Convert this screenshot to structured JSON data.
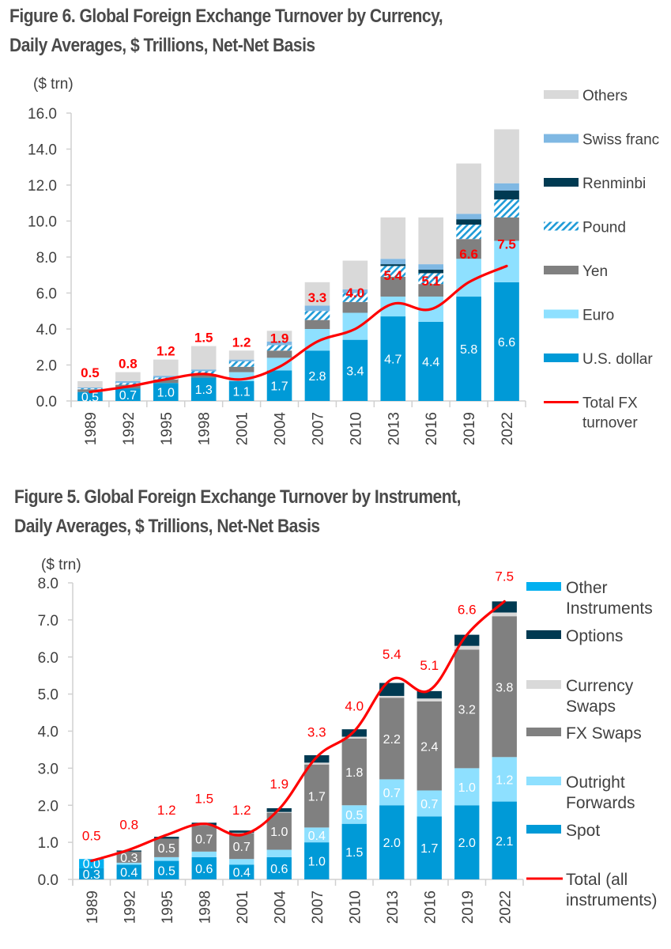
{
  "figures": {
    "figure6_title_line1": "Figure 6. Global Foreign Exchange Turnover by Currency,",
    "figure6_title_line2": "Daily Averages, $ Trillions, Net-Net Basis",
    "figure5_title_line1": "Figure 5. Global Foreign Exchange Turnover by Instrument,",
    "figure5_title_line2": "Daily Averages, $ Trillions, Net-Net Basis"
  },
  "chart_data": [
    {
      "type": "bar",
      "stacked": true,
      "title": "Figure 6. Global Foreign Exchange Turnover by Currency, Daily Averages, $ Trillions, Net-Net Basis",
      "ylabel": "($ trn)",
      "xlabel": "",
      "ylim": [
        0,
        16
      ],
      "yticks": [
        "0.0",
        "2.0",
        "4.0",
        "6.0",
        "8.0",
        "10.0",
        "12.0",
        "14.0",
        "16.0"
      ],
      "ytick_values": [
        0,
        2,
        4,
        6,
        8,
        10,
        12,
        14,
        16
      ],
      "grid": false,
      "legend_position": "right",
      "categories": [
        "1989",
        "1992",
        "1995",
        "1998",
        "2001",
        "2004",
        "2007",
        "2010",
        "2013",
        "2016",
        "2019",
        "2022"
      ],
      "series": [
        {
          "name": "U.S. dollar",
          "color": "#009ad7",
          "values": [
            0.5,
            0.7,
            1.0,
            1.3,
            1.1,
            1.7,
            2.8,
            3.4,
            4.7,
            4.4,
            5.8,
            6.6
          ],
          "labels": [
            "0.5",
            "0.7",
            "1.0",
            "1.3",
            "1.1",
            "1.7",
            "2.8",
            "3.4",
            "4.7",
            "4.4",
            "5.8",
            "6.6"
          ]
        },
        {
          "name": "Euro",
          "color": "#8ee0ff",
          "values": [
            0.0,
            0.0,
            0.0,
            0.0,
            0.5,
            0.7,
            1.2,
            1.5,
            1.1,
            1.4,
            2.1,
            2.3
          ]
        },
        {
          "name": "Yen",
          "color": "#808080",
          "values": [
            0.15,
            0.2,
            0.2,
            0.2,
            0.3,
            0.4,
            0.5,
            0.6,
            1.1,
            0.7,
            1.1,
            1.3
          ]
        },
        {
          "name": "Pound",
          "color": "#1e9bd7",
          "pattern": "hatch",
          "values": [
            0.05,
            0.1,
            0.1,
            0.15,
            0.3,
            0.3,
            0.5,
            0.5,
            0.6,
            0.6,
            0.8,
            1.0
          ]
        },
        {
          "name": "Renminbi",
          "color": "#003a52",
          "values": [
            0.0,
            0.0,
            0.0,
            0.0,
            0.0,
            0.0,
            0.0,
            0.0,
            0.1,
            0.2,
            0.3,
            0.5
          ]
        },
        {
          "name": "Swiss franc",
          "color": "#7fb8e3",
          "values": [
            0.05,
            0.1,
            0.1,
            0.1,
            0.1,
            0.2,
            0.3,
            0.2,
            0.3,
            0.3,
            0.3,
            0.4
          ]
        },
        {
          "name": "Others",
          "color": "#d9d9d9",
          "values": [
            0.35,
            0.5,
            0.9,
            1.3,
            0.5,
            0.6,
            1.3,
            1.6,
            2.3,
            2.6,
            2.8,
            3.0
          ]
        }
      ],
      "line": {
        "name": "Total FX turnover",
        "color": "#ff0000",
        "values": [
          0.5,
          0.8,
          1.2,
          1.5,
          1.2,
          1.9,
          3.3,
          4.0,
          5.4,
          5.1,
          6.6,
          7.5
        ],
        "labels": [
          "0.5",
          "0.8",
          "1.2",
          "1.5",
          "1.2",
          "1.9",
          "3.3",
          "4.0",
          "5.4",
          "5.1",
          "6.6",
          "7.5"
        ]
      },
      "legend": [
        "Others",
        "Swiss franc",
        "Renminbi",
        "Pound",
        "Yen",
        "Euro",
        "U.S. dollar",
        "Total FX turnover"
      ],
      "legend_line_label": [
        "Total FX",
        "turnover"
      ]
    },
    {
      "type": "bar",
      "stacked": true,
      "title": "Figure 5. Global Foreign Exchange Turnover by Instrument, Daily Averages, $ Trillions, Net-Net Basis",
      "ylabel": "($ trn)",
      "xlabel": "",
      "ylim": [
        0,
        8
      ],
      "yticks": [
        "0.0",
        "1.0",
        "2.0",
        "3.0",
        "4.0",
        "5.0",
        "6.0",
        "7.0",
        "8.0"
      ],
      "ytick_values": [
        0,
        1,
        2,
        3,
        4,
        5,
        6,
        7,
        8
      ],
      "grid": false,
      "legend_position": "right",
      "categories": [
        "1989",
        "1992",
        "1995",
        "1998",
        "2001",
        "2004",
        "2007",
        "2010",
        "2013",
        "2016",
        "2019",
        "2022"
      ],
      "series": [
        {
          "name": "Spot",
          "color": "#009ad7",
          "values": [
            0.3,
            0.4,
            0.5,
            0.6,
            0.4,
            0.6,
            1.0,
            1.5,
            2.0,
            1.7,
            2.0,
            2.1
          ],
          "labels": [
            "0.3",
            "0.4",
            "0.5",
            "0.6",
            "0.4",
            "0.6",
            "1.0",
            "1.5",
            "2.0",
            "1.7",
            "2.0",
            "2.1"
          ]
        },
        {
          "name": "Outright Forwards",
          "color": "#8ee0ff",
          "values": [
            0.0,
            0.05,
            0.1,
            0.15,
            0.15,
            0.2,
            0.4,
            0.5,
            0.7,
            0.7,
            1.0,
            1.2
          ],
          "labels": [
            "",
            "",
            "",
            "",
            "",
            "",
            "0.4",
            "0.5",
            "0.7",
            "0.7",
            "1.0",
            "1.2"
          ]
        },
        {
          "name": "FX Swaps",
          "color": "#808080",
          "values": [
            0.0,
            0.3,
            0.5,
            0.7,
            0.7,
            1.0,
            1.7,
            1.8,
            2.2,
            2.4,
            3.2,
            3.8
          ],
          "labels": [
            "0.0",
            "0.3",
            "0.5",
            "0.7",
            "0.7",
            "1.0",
            "1.7",
            "1.8",
            "2.2",
            "2.4",
            "3.2",
            "3.8"
          ]
        },
        {
          "name": "Currency Swaps",
          "color": "#d9d9d9",
          "values": [
            0.0,
            0.0,
            0.0,
            0.01,
            0.01,
            0.02,
            0.05,
            0.05,
            0.05,
            0.08,
            0.1,
            0.1
          ]
        },
        {
          "name": "Options",
          "color": "#003a52",
          "values": [
            0.0,
            0.03,
            0.05,
            0.07,
            0.06,
            0.1,
            0.2,
            0.2,
            0.35,
            0.2,
            0.3,
            0.3
          ]
        },
        {
          "name": "Other Instruments",
          "color": "#00b0f0",
          "values": [
            0.25,
            0.0,
            0.0,
            0.0,
            0.0,
            0.0,
            0.0,
            0.0,
            0.0,
            0.0,
            0.0,
            0.0
          ]
        }
      ],
      "line": {
        "name": "Total (all instruments)",
        "color": "#ff0000",
        "values": [
          0.5,
          0.8,
          1.2,
          1.5,
          1.2,
          1.9,
          3.3,
          4.0,
          5.4,
          5.1,
          6.6,
          7.5
        ],
        "labels": [
          "0.5",
          "0.8",
          "1.2",
          "1.5",
          "1.2",
          "1.9",
          "3.3",
          "4.0",
          "5.4",
          "5.1",
          "6.6",
          "7.5"
        ]
      },
      "legend": [
        [
          "Other",
          "Instruments"
        ],
        [
          "Options"
        ],
        [
          "Currency",
          "Swaps"
        ],
        [
          "FX Swaps"
        ],
        [
          "Outright",
          "Forwards"
        ],
        [
          "Spot"
        ],
        [
          "Total (all",
          "instruments)"
        ]
      ]
    }
  ]
}
